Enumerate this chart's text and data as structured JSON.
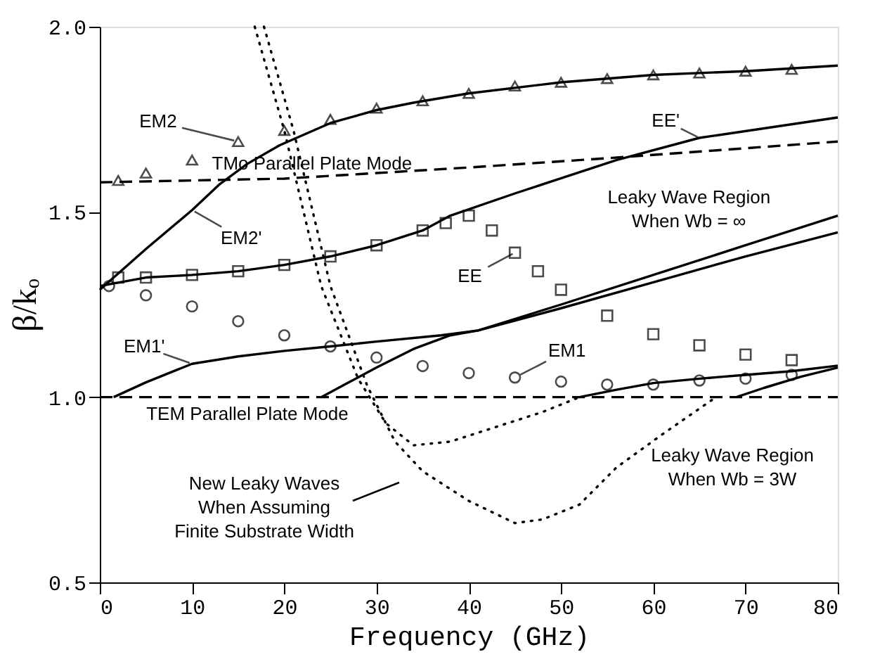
{
  "chart_data": {
    "type": "line",
    "xlabel": "Frequency (GHz)",
    "ylabel": "β/kₒ",
    "xlim": [
      0,
      80
    ],
    "xticks": [
      0,
      10,
      20,
      30,
      40,
      50,
      60,
      70,
      80
    ],
    "ylim": [
      0.5,
      2.0
    ],
    "yticks": [
      0.5,
      {
        "value": 1,
        "label": "1.0"
      },
      1.5,
      {
        "value": 2,
        "label": "2.0"
      }
    ],
    "grid": false,
    "series": [
      {
        "type": "scatter",
        "marker": "triangle",
        "color": "#000000",
        "x": [
          2,
          5,
          10,
          15,
          20,
          25,
          30,
          35,
          40,
          45,
          50,
          55,
          60,
          65,
          70,
          75
        ],
        "values": [
          1.585,
          1.605,
          1.64,
          1.69,
          1.72,
          1.75,
          1.78,
          1.8,
          1.82,
          1.84,
          1.85,
          1.86,
          1.87,
          1.875,
          1.88,
          1.885
        ]
      },
      {
        "line_style": "solid",
        "color": "#000000",
        "x": [
          0,
          5,
          10,
          13,
          16,
          19.5,
          25,
          30,
          34,
          40,
          50,
          60,
          70,
          80
        ],
        "values": [
          1.29,
          1.4,
          1.505,
          1.575,
          1.63,
          1.68,
          1.74,
          1.775,
          1.795,
          1.82,
          1.85,
          1.87,
          1.88,
          1.895
        ]
      },
      {
        "line_style": "dashed",
        "color": "#000000",
        "x": [
          0,
          20,
          30,
          40,
          55,
          80
        ],
        "values": [
          1.58,
          1.59,
          1.605,
          1.62,
          1.645,
          1.69
        ]
      },
      {
        "type": "scatter",
        "marker": "square",
        "color": "#000000",
        "x": [
          2,
          5,
          10,
          15,
          20,
          25,
          30,
          35,
          37.5,
          40,
          42.5,
          45,
          47.5,
          50,
          55,
          60,
          65,
          70,
          75
        ],
        "values": [
          1.323,
          1.323,
          1.33,
          1.34,
          1.357,
          1.38,
          1.41,
          1.45,
          1.47,
          1.49,
          1.45,
          1.39,
          1.34,
          1.29,
          1.22,
          1.17,
          1.14,
          1.115,
          1.1
        ]
      },
      {
        "line_style": "solid",
        "color": "#000000",
        "x": [
          0,
          5,
          10,
          15,
          20,
          25,
          30,
          35,
          38,
          45,
          56,
          65,
          80
        ],
        "values": [
          1.3,
          1.323,
          1.33,
          1.34,
          1.357,
          1.38,
          1.41,
          1.45,
          1.49,
          1.55,
          1.64,
          1.7,
          1.755
        ]
      },
      {
        "type": "scatter",
        "marker": "circle",
        "color": "#000000",
        "x": [
          1,
          5,
          10,
          15,
          20,
          25,
          30,
          35,
          40,
          45,
          50,
          55,
          60,
          65,
          70,
          75
        ],
        "values": [
          1.3,
          1.275,
          1.245,
          1.205,
          1.167,
          1.137,
          1.107,
          1.084,
          1.065,
          1.053,
          1.042,
          1.034,
          1.034,
          1.045,
          1.05,
          1.06
        ]
      },
      {
        "line_style": "solid",
        "color": "#000000",
        "x": [
          1.5,
          5,
          10,
          15,
          20,
          25,
          30,
          37,
          41,
          50,
          60,
          70,
          80
        ],
        "values": [
          1.0,
          1.04,
          1.09,
          1.11,
          1.125,
          1.137,
          1.15,
          1.167,
          1.18,
          1.24,
          1.31,
          1.38,
          1.445
        ]
      },
      {
        "line_style": "solid",
        "color": "#000000",
        "x": [
          24,
          27,
          30,
          34,
          38,
          41,
          50,
          60,
          70,
          80
        ],
        "values": [
          1.0,
          1.04,
          1.08,
          1.13,
          1.167,
          1.18,
          1.25,
          1.33,
          1.41,
          1.49
        ]
      },
      {
        "line_style": "solid",
        "color": "#000000",
        "x": [
          52,
          56,
          60,
          65,
          70,
          75,
          80
        ],
        "values": [
          1.0,
          1.02,
          1.038,
          1.05,
          1.06,
          1.07,
          1.085
        ]
      },
      {
        "line_style": "solid",
        "color": "#000000",
        "x": [
          69,
          72,
          76,
          80
        ],
        "values": [
          1.0,
          1.025,
          1.055,
          1.08
        ]
      },
      {
        "line_style": "dashed",
        "color": "#000000",
        "x": [
          0,
          80
        ],
        "values": [
          1.0,
          1.0
        ]
      },
      {
        "line_style": "dotted",
        "color": "#000000",
        "x": [
          16.8,
          20,
          24,
          28,
          31,
          34,
          38,
          43,
          48,
          52,
          null,
          17.8,
          21,
          25,
          29,
          32,
          35,
          40,
          45,
          48,
          52,
          56,
          61,
          66.8
        ],
        "values": [
          2.0,
          1.72,
          1.3,
          1.05,
          0.93,
          0.87,
          0.88,
          0.92,
          0.96,
          1.0,
          null,
          2.0,
          1.72,
          1.3,
          1.03,
          0.88,
          0.8,
          0.72,
          0.66,
          0.67,
          0.71,
          0.81,
          0.9,
          1.0
        ]
      }
    ],
    "annotations": [
      {
        "text": "EM2",
        "x": 15,
        "y": 1.69
      },
      {
        "text": "EM2'",
        "x": 10,
        "y": 1.505
      },
      {
        "text": "EE'",
        "x": 65,
        "y": 1.7
      },
      {
        "text": "EE",
        "x": 45,
        "y": 1.39
      },
      {
        "text": "EM1'",
        "x": 10,
        "y": 1.09
      },
      {
        "text": "EM1",
        "x": 45,
        "y": 1.053
      },
      {
        "text": "TMo Parallel Plate Mode",
        "x": 23,
        "y": 1.595
      },
      {
        "text": "TEM Parallel Plate Mode",
        "x": 16,
        "y": 1.0
      },
      {
        "text": "Leaky Wave Region\nWhen Wb = ∞",
        "x": 66,
        "y": 1.665
      },
      {
        "text": "Leaky Wave Region\nWhen Wb = 3W",
        "x": 70.4,
        "y": 1.0
      },
      "New Leaky Waves\nWhen Assuming\nFinite Substrate Width"
    ]
  }
}
